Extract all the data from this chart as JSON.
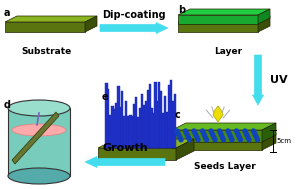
{
  "bg_color": "#ffffff",
  "substrate_top": "#8ab520",
  "substrate_side": "#5a7510",
  "substrate_dark": "#3a5008",
  "layer_top": "#20cc40",
  "layer_side": "#18aa30",
  "layer_dark": "#108820",
  "seeds_top": "#66bb22",
  "seeds_side": "#4a8a10",
  "seeds_dark": "#2a6008",
  "nanorod_color": "#2233cc",
  "nanorod_edge": "#1122aa",
  "beaker_body": "#77ccbb",
  "beaker_dark": "#55aaaa",
  "beaker_top": "#99ddcc",
  "liquid_color": "#ffaaaa",
  "liquid_edge": "#dd8888",
  "arrow_color": "#44ddee",
  "substrate_label": "Substrate",
  "layer_label": "Layer",
  "seeds_label": "Seeds Layer",
  "dip_label": "Dip-coating",
  "uv_label": "UV",
  "growth_label": "Growth",
  "dist_label": "5cm",
  "label_fontsize": 6.5,
  "arrow_fontsize": 7,
  "panel_fontsize": 7
}
